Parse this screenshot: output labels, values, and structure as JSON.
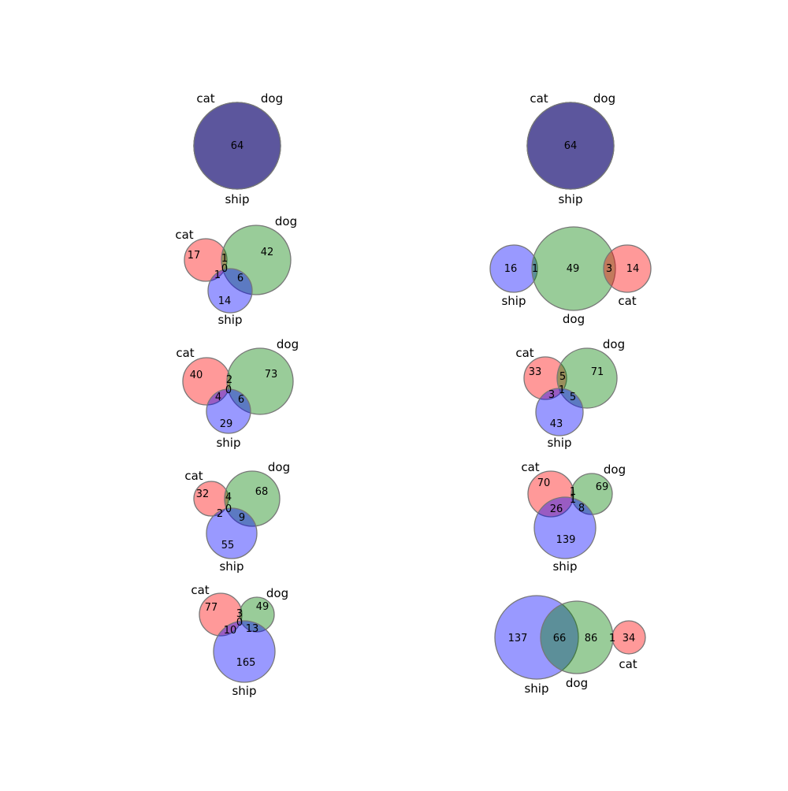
{
  "colors": {
    "cat": "#ff0000",
    "dog": "#008000",
    "ship": "#0000ff",
    "circle_opacity": 0.4,
    "edge": "#777777"
  },
  "chart_data": [
    {
      "type": "venn",
      "sets": [
        "cat",
        "dog",
        "ship"
      ],
      "circles": [
        {
          "set": "cat",
          "label": "cat"
        },
        {
          "set": "dog",
          "label": "dog"
        },
        {
          "set": "ship",
          "label": "ship"
        }
      ],
      "regions": [
        {
          "label": "64"
        }
      ]
    },
    {
      "type": "venn",
      "sets": [
        "cat",
        "dog",
        "ship"
      ],
      "circles": [
        {
          "set": "cat",
          "label": "cat"
        },
        {
          "set": "dog",
          "label": "dog"
        },
        {
          "set": "ship",
          "label": "ship"
        }
      ],
      "regions": [
        {
          "label": "64"
        }
      ]
    },
    {
      "type": "venn",
      "sets": [
        "cat",
        "dog",
        "ship"
      ],
      "circles": [
        {
          "set": "cat",
          "label": "cat"
        },
        {
          "set": "dog",
          "label": "dog"
        },
        {
          "set": "ship",
          "label": "ship"
        }
      ],
      "regions": [
        {
          "sets": "cat",
          "label": "17"
        },
        {
          "sets": "dog",
          "label": "42"
        },
        {
          "sets": "cat&dog",
          "label": "1"
        },
        {
          "sets": "cat&dog&ship",
          "label": "0"
        },
        {
          "sets": "cat&ship",
          "label": "1"
        },
        {
          "sets": "dog&ship",
          "label": "6"
        },
        {
          "sets": "ship",
          "label": "14"
        }
      ]
    },
    {
      "type": "venn",
      "sets": [
        "ship",
        "dog",
        "cat"
      ],
      "circles": [
        {
          "set": "ship",
          "label": "ship"
        },
        {
          "set": "dog",
          "label": "dog"
        },
        {
          "set": "cat",
          "label": "cat"
        }
      ],
      "regions": [
        {
          "sets": "ship",
          "label": "16"
        },
        {
          "sets": "ship&dog",
          "label": "1"
        },
        {
          "sets": "dog",
          "label": "49"
        },
        {
          "sets": "dog&cat",
          "label": "3"
        },
        {
          "sets": "cat",
          "label": "14"
        }
      ]
    },
    {
      "type": "venn",
      "sets": [
        "cat",
        "dog",
        "ship"
      ],
      "circles": [
        {
          "set": "cat",
          "label": "cat"
        },
        {
          "set": "dog",
          "label": "dog"
        },
        {
          "set": "ship",
          "label": "ship"
        }
      ],
      "regions": [
        {
          "sets": "cat",
          "label": "40"
        },
        {
          "sets": "dog",
          "label": "73"
        },
        {
          "sets": "cat&dog",
          "label": "2"
        },
        {
          "sets": "cat&dog&ship",
          "label": "0"
        },
        {
          "sets": "cat&ship",
          "label": "4"
        },
        {
          "sets": "dog&ship",
          "label": "6"
        },
        {
          "sets": "ship",
          "label": "29"
        }
      ]
    },
    {
      "type": "venn",
      "sets": [
        "cat",
        "dog",
        "ship"
      ],
      "circles": [
        {
          "set": "cat",
          "label": "cat"
        },
        {
          "set": "dog",
          "label": "dog"
        },
        {
          "set": "ship",
          "label": "ship"
        }
      ],
      "regions": [
        {
          "sets": "cat",
          "label": "33"
        },
        {
          "sets": "dog",
          "label": "71"
        },
        {
          "sets": "cat&dog",
          "label": "5"
        },
        {
          "sets": "cat&dog&ship",
          "label": "1"
        },
        {
          "sets": "cat&ship",
          "label": "3"
        },
        {
          "sets": "dog&ship",
          "label": "5"
        },
        {
          "sets": "ship",
          "label": "43"
        }
      ]
    },
    {
      "type": "venn",
      "sets": [
        "cat",
        "dog",
        "ship"
      ],
      "circles": [
        {
          "set": "cat",
          "label": "cat"
        },
        {
          "set": "dog",
          "label": "dog"
        },
        {
          "set": "ship",
          "label": "ship"
        }
      ],
      "regions": [
        {
          "sets": "cat",
          "label": "32"
        },
        {
          "sets": "dog",
          "label": "68"
        },
        {
          "sets": "cat&dog",
          "label": "4"
        },
        {
          "sets": "cat&dog&ship",
          "label": "0"
        },
        {
          "sets": "cat&ship",
          "label": "2"
        },
        {
          "sets": "dog&ship",
          "label": "9"
        },
        {
          "sets": "ship",
          "label": "55"
        }
      ]
    },
    {
      "type": "venn",
      "sets": [
        "cat",
        "dog",
        "ship"
      ],
      "circles": [
        {
          "set": "cat",
          "label": "cat"
        },
        {
          "set": "dog",
          "label": "dog"
        },
        {
          "set": "ship",
          "label": "ship"
        }
      ],
      "regions": [
        {
          "sets": "cat",
          "label": "70"
        },
        {
          "sets": "dog",
          "label": "69"
        },
        {
          "sets": "cat&dog",
          "label": "1"
        },
        {
          "sets": "cat&dog&ship",
          "label": "1"
        },
        {
          "sets": "cat&ship",
          "label": "26"
        },
        {
          "sets": "dog&ship",
          "label": "8"
        },
        {
          "sets": "ship",
          "label": "139"
        }
      ]
    },
    {
      "type": "venn",
      "sets": [
        "cat",
        "dog",
        "ship"
      ],
      "circles": [
        {
          "set": "cat",
          "label": "cat"
        },
        {
          "set": "dog",
          "label": "dog"
        },
        {
          "set": "ship",
          "label": "ship"
        }
      ],
      "regions": [
        {
          "sets": "cat",
          "label": "77"
        },
        {
          "sets": "dog",
          "label": "49"
        },
        {
          "sets": "cat&dog",
          "label": "3"
        },
        {
          "sets": "cat&dog&ship",
          "label": "0"
        },
        {
          "sets": "cat&ship",
          "label": "10"
        },
        {
          "sets": "dog&ship",
          "label": "13"
        },
        {
          "sets": "ship",
          "label": "165"
        }
      ]
    },
    {
      "type": "venn",
      "sets": [
        "ship",
        "dog",
        "cat"
      ],
      "circles": [
        {
          "set": "ship",
          "label": "ship"
        },
        {
          "set": "dog",
          "label": "dog"
        },
        {
          "set": "cat",
          "label": "cat"
        }
      ],
      "regions": [
        {
          "sets": "ship",
          "label": "137"
        },
        {
          "sets": "ship&dog",
          "label": "66"
        },
        {
          "sets": "dog",
          "label": "86"
        },
        {
          "sets": "dog&cat",
          "label": "1"
        },
        {
          "sets": "cat",
          "label": "34"
        }
      ]
    }
  ]
}
